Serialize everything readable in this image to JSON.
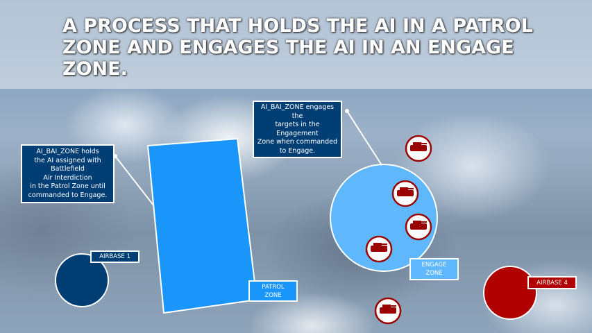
{
  "title": "A PROCESS THAT HOLDS THE AI IN A PATROL ZONE AND ENGAGES THE AI IN AN ENGAGE ZONE.",
  "callouts": {
    "patrol": "AI_BAI_ZONE holds the AI assigned with Battlefield Air Interdiction in the Patrol Zone until commanded to Engage.",
    "patrol_lines": [
      "AI_BAI_ZONE holds",
      "the AI assigned with",
      "Battlefield",
      "Air Interdiction",
      "in the Patrol Zone until",
      "commanded to Engage."
    ],
    "engage_lines": [
      "AI_BAI_ZONE engages the",
      "targets in the Engagement",
      "Zone when commanded",
      "to Engage."
    ]
  },
  "labels": {
    "airbase1": "AIRBASE 1",
    "airbase4": "AIRBASE 4",
    "patrol_zone": [
      "PATROL",
      "ZONE"
    ],
    "engage_zone": [
      "ENGAGE",
      "ZONE"
    ]
  },
  "colors": {
    "patrol_zone": "#1a96fa",
    "engage_zone": "#5fb8fc",
    "airbase1": "#003e74",
    "airbase4": "#b00000",
    "callout": "#003e74",
    "target": "#9b0000"
  },
  "targets": [
    "tank-icon",
    "tank-icon",
    "tank-icon",
    "tank-icon",
    "tank-icon"
  ]
}
